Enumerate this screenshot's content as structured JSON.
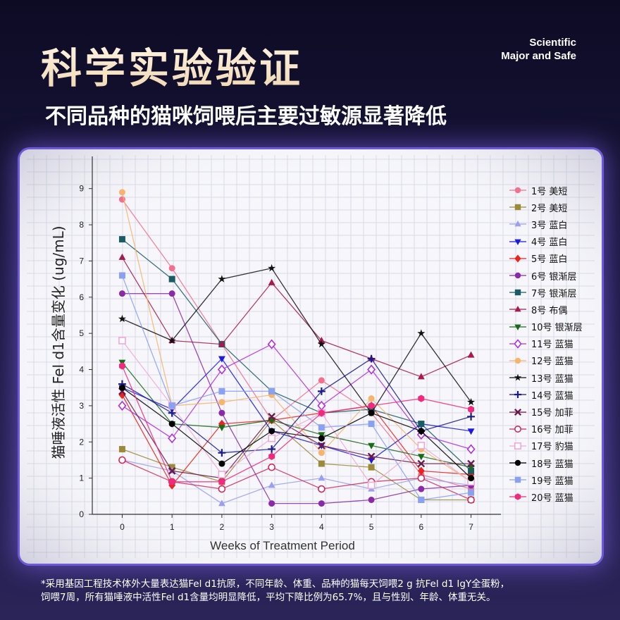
{
  "header": {
    "title": "科学实验验证",
    "badge_line1": "Scientific",
    "badge_line2": "Major and Safe",
    "subtitle": "不同品种的猫咪饲喂后主要过敏源显著降低"
  },
  "footnote": {
    "line1": "*采用基因工程技术体外大量表达猫Fel d1抗原，不同年龄、体重、品种的猫每天饲喂2 g 抗Fel d1 IgY全蛋粉，",
    "line2": "饲喂7周，所有猫唾液中活性Fel d1含量均明显降低，平均下降比例为65.7%，且与性别、年龄、体重无关。"
  },
  "chart_data": {
    "type": "line",
    "xlabel": "Weeks of Treatment Period",
    "ylabel": "猫唾液活性 Fel d1含量变化 (ug/mL)",
    "x": [
      0,
      1,
      2,
      3,
      4,
      5,
      6,
      7
    ],
    "xlim": [
      -0.6,
      7.6
    ],
    "ylim": [
      0,
      9.5
    ],
    "xticks": [
      "0",
      "1",
      "2",
      "3",
      "4",
      "5",
      "6",
      "7"
    ],
    "yticks": [
      "0",
      "1",
      "2",
      "3",
      "4",
      "5",
      "6",
      "7",
      "8",
      "9"
    ],
    "grid": true,
    "legend_position": "right",
    "series": [
      {
        "name": "1号 美短",
        "color": "#f2708c",
        "marker": "circle",
        "values": [
          8.7,
          6.8,
          4.7,
          2.6,
          3.7,
          2.8,
          1.1,
          0.7
        ]
      },
      {
        "name": "2号 美短",
        "color": "#9a8a3a",
        "marker": "square",
        "values": [
          1.8,
          1.3,
          0.9,
          2.6,
          1.4,
          1.3,
          0.4,
          0.4
        ]
      },
      {
        "name": "3号 蓝白",
        "color": "#9aa0f0",
        "marker": "triangle-up",
        "values": [
          1.5,
          1.2,
          0.3,
          0.8,
          1.0,
          0.7,
          1.0,
          0.8
        ]
      },
      {
        "name": "4号 蓝白",
        "color": "#1a1ae0",
        "marker": "triangle-down",
        "values": [
          3.5,
          2.9,
          4.3,
          2.3,
          1.9,
          1.5,
          2.5,
          2.3
        ]
      },
      {
        "name": "5号 蓝白",
        "color": "#e8241c",
        "marker": "diamond",
        "values": [
          3.3,
          0.8,
          2.5,
          2.6,
          2.8,
          3.0,
          1.2,
          1.1
        ]
      },
      {
        "name": "6号 银渐层",
        "color": "#8a2aa8",
        "marker": "circle",
        "values": [
          6.1,
          6.1,
          2.8,
          0.3,
          0.3,
          0.4,
          0.7,
          0.8
        ]
      },
      {
        "name": "7号 银渐层",
        "color": "#1a5c64",
        "marker": "square",
        "values": [
          7.6,
          6.5,
          4.7,
          3.4,
          2.8,
          2.9,
          2.5,
          1.2
        ]
      },
      {
        "name": "8号 布偶",
        "color": "#a61a50",
        "marker": "triangle-up",
        "values": [
          7.1,
          4.8,
          4.7,
          6.4,
          4.8,
          4.3,
          3.8,
          4.4
        ]
      },
      {
        "name": "10号 银渐层",
        "color": "#1a6a1a",
        "marker": "triangle-down",
        "values": [
          4.2,
          2.5,
          2.4,
          2.6,
          2.2,
          1.9,
          1.6,
          1.3
        ]
      },
      {
        "name": "11号 蓝猫",
        "color": "#b02ee0",
        "marker": "diamond-open",
        "values": [
          3.0,
          2.1,
          4.0,
          4.7,
          3.0,
          4.0,
          2.2,
          1.8
        ]
      },
      {
        "name": "12号 蓝猫",
        "color": "#f6b46c",
        "marker": "circle",
        "values": [
          8.9,
          3.0,
          3.1,
          3.3,
          1.7,
          3.2,
          1.8,
          0.9
        ]
      },
      {
        "name": "13号 蓝猫",
        "color": "#111111",
        "marker": "star",
        "values": [
          5.4,
          4.8,
          6.5,
          6.8,
          4.7,
          2.8,
          5.0,
          3.1
        ]
      },
      {
        "name": "14号 蓝猫",
        "color": "#1a1a8c",
        "marker": "plus",
        "values": [
          3.6,
          2.8,
          1.7,
          1.8,
          3.4,
          4.3,
          2.3,
          2.7
        ]
      },
      {
        "name": "15号 加菲",
        "color": "#6a1a4a",
        "marker": "cross",
        "values": [
          3.4,
          1.2,
          1.0,
          2.7,
          1.9,
          1.6,
          1.4,
          1.4
        ]
      },
      {
        "name": "16号 加菲",
        "color": "#d22a5a",
        "marker": "circle-open",
        "values": [
          1.5,
          0.9,
          0.7,
          1.3,
          0.7,
          0.9,
          1.0,
          0.4
        ]
      },
      {
        "name": "17号 豹猫",
        "color": "#f0a8d8",
        "marker": "square-open",
        "values": [
          4.8,
          3.0,
          1.1,
          2.1,
          2.8,
          0.8,
          1.9,
          0.9
        ]
      },
      {
        "name": "18号 蓝猫",
        "color": "#000000",
        "marker": "circle",
        "values": [
          3.5,
          2.5,
          1.4,
          2.3,
          2.1,
          2.8,
          2.3,
          1.0
        ]
      },
      {
        "name": "19号 蓝猫",
        "color": "#8aa0f0",
        "marker": "square",
        "values": [
          6.6,
          3.0,
          3.4,
          3.4,
          2.4,
          2.5,
          0.4,
          0.6
        ]
      },
      {
        "name": "20号 蓝猫",
        "color": "#f02a7c",
        "marker": "hexagon",
        "values": [
          4.1,
          0.9,
          0.9,
          1.6,
          2.8,
          3.0,
          3.2,
          2.9
        ]
      }
    ]
  }
}
